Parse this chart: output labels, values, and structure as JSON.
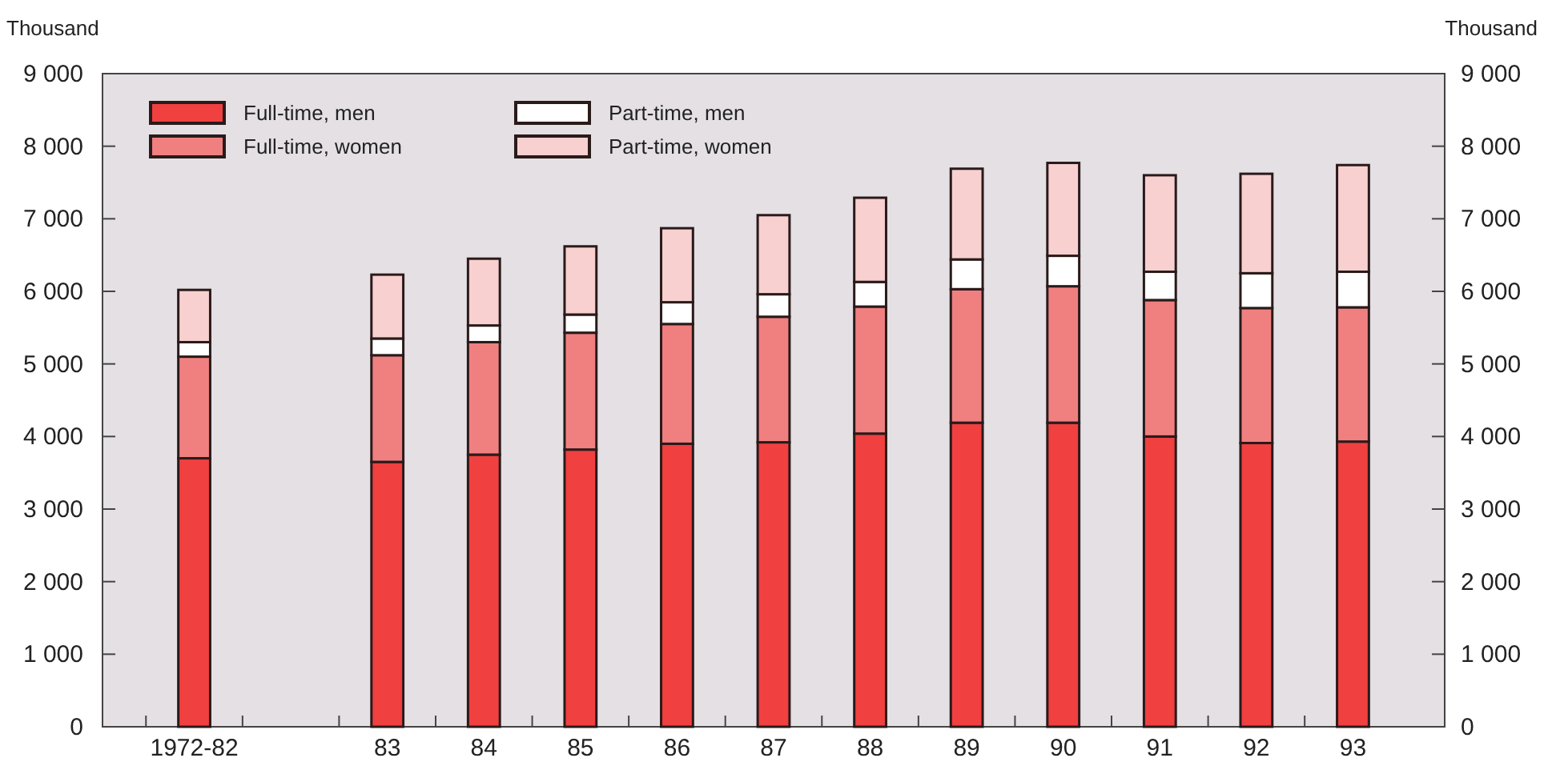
{
  "chart_data": {
    "type": "bar",
    "stacked": true,
    "ylabel": "Thousand",
    "y2label": "Thousand",
    "categories": [
      "1972-82",
      null,
      "83",
      "84",
      "85",
      "86",
      "87",
      "88",
      "89",
      "90",
      "91",
      "92",
      "93"
    ],
    "series": [
      {
        "name": "Full-time, men",
        "color": "#f04040",
        "values": [
          3700,
          null,
          3650,
          3750,
          3820,
          3900,
          3920,
          4040,
          4190,
          4190,
          4000,
          3910,
          3930
        ]
      },
      {
        "name": "Full-time, women",
        "color": "#f08080",
        "values": [
          1400,
          null,
          1470,
          1550,
          1610,
          1650,
          1730,
          1750,
          1840,
          1880,
          1880,
          1860,
          1850
        ]
      },
      {
        "name": "Part-time, men",
        "color": "#ffffff",
        "values": [
          200,
          null,
          230,
          230,
          250,
          300,
          310,
          340,
          410,
          420,
          390,
          480,
          490
        ]
      },
      {
        "name": "Part-time, women",
        "color": "#f8d0d0",
        "values": [
          720,
          null,
          880,
          920,
          940,
          1020,
          1090,
          1160,
          1250,
          1280,
          1330,
          1370,
          1470
        ]
      }
    ],
    "ylim": [
      0,
      9000
    ],
    "y2lim": [
      0,
      9000
    ],
    "yticks": [
      0,
      {
        "value": 1000,
        "label": "1 000"
      },
      {
        "value": 2000,
        "label": "2 000"
      },
      {
        "value": 3000,
        "label": "3 000"
      },
      {
        "value": 4000,
        "label": "4 000"
      },
      {
        "value": 5000,
        "label": "5 000"
      },
      {
        "value": 6000,
        "label": "6 000"
      },
      {
        "value": 7000,
        "label": "7 000"
      },
      {
        "value": 8000,
        "label": "8 000"
      },
      {
        "value": 9000,
        "label": "9 000"
      }
    ],
    "y2ticks": [
      0,
      {
        "value": 1000,
        "label": "1 000"
      },
      {
        "value": 2000,
        "label": "2 000"
      },
      {
        "value": 3000,
        "label": "3 000"
      },
      {
        "value": 4000,
        "label": "4 000"
      },
      {
        "value": 5000,
        "label": "5 000"
      },
      {
        "value": 6000,
        "label": "6 000"
      },
      {
        "value": 7000,
        "label": "7 000"
      },
      {
        "value": 8000,
        "label": "8 000"
      },
      {
        "value": 9000,
        "label": "9 000"
      }
    ],
    "legend": "top left",
    "grid": false
  }
}
